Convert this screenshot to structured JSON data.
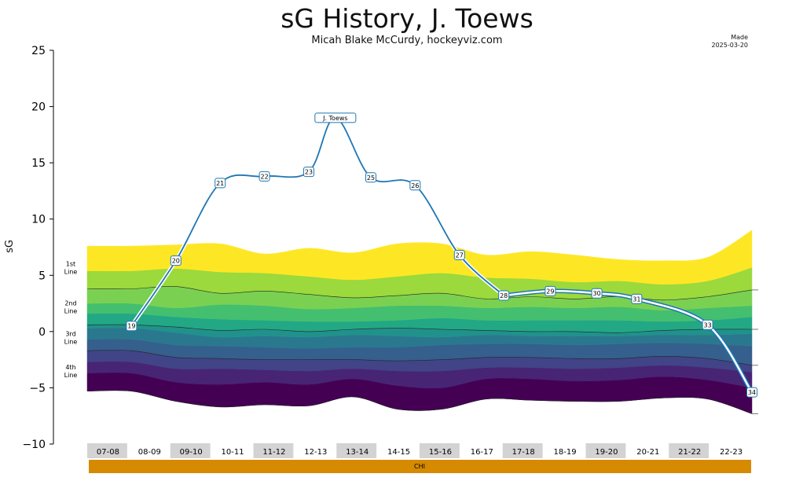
{
  "header": {
    "title": "sG History, J. Toews",
    "subtitle": "Micah Blake McCurdy, hockeyviz.com",
    "made_line1": "Made",
    "made_line2": "2025-03-20"
  },
  "chart_data": {
    "type": "line",
    "title": "sG History, J. Toews",
    "ylabel": "sG",
    "ylim": [
      -10,
      25
    ],
    "yticks": [
      -10,
      -5,
      0,
      5,
      10,
      15,
      20,
      25
    ],
    "seasons": [
      "07-08",
      "08-09",
      "09-10",
      "10-11",
      "11-12",
      "12-13",
      "13-14",
      "14-15",
      "15-16",
      "16-17",
      "17-18",
      "18-19",
      "19-20",
      "20-21",
      "21-22",
      "22-23"
    ],
    "team": "CHI",
    "line_labels": [
      "1st Line",
      "2nd Line",
      "3rd Line",
      "4th Line"
    ],
    "series": [
      {
        "label": "J. Toews",
        "points": [
          {
            "age": "19",
            "x": 1,
            "y": 0.5
          },
          {
            "age": "20",
            "x": 2,
            "y": 6.3
          },
          {
            "age": "21",
            "x": 3,
            "y": 13.2
          },
          {
            "age": "22",
            "x": 4,
            "y": 13.8
          },
          {
            "age": "23",
            "x": 5,
            "y": 14.2
          },
          {
            "age": "J. Toews",
            "x": 5.6,
            "y": 19.0
          },
          {
            "age": "25",
            "x": 6.4,
            "y": 13.7
          },
          {
            "age": "26",
            "x": 7.4,
            "y": 13.0
          },
          {
            "age": "27",
            "x": 8.4,
            "y": 6.8
          },
          {
            "age": "28",
            "x": 9.4,
            "y": 3.2
          },
          {
            "age": "29",
            "x": 10.45,
            "y": 3.6
          },
          {
            "age": "30",
            "x": 11.5,
            "y": 3.4
          },
          {
            "age": "31",
            "x": 12.4,
            "y": 2.9
          },
          {
            "age": "33",
            "x": 14.0,
            "y": 0.6
          },
          {
            "age": "34",
            "x": 15.0,
            "y": -5.4
          }
        ]
      }
    ],
    "distribution_bands": [
      [
        -5.3,
        -5.3,
        -6.2,
        -6.7,
        -6.5,
        -6.6,
        -5.8,
        -6.9,
        -6.9,
        -6.0,
        -6.1,
        -6.2,
        -6.2,
        -5.9,
        -6.0,
        -7.3
      ],
      [
        -3.7,
        -3.7,
        -4.5,
        -4.7,
        -4.5,
        -4.7,
        -4.2,
        -4.8,
        -5.0,
        -4.2,
        -4.2,
        -4.4,
        -4.3,
        -4.0,
        -4.3,
        -5.0
      ],
      [
        -2.7,
        -2.7,
        -3.3,
        -3.3,
        -3.4,
        -3.5,
        -3.3,
        -3.5,
        -3.5,
        -3.2,
        -3.2,
        -3.3,
        -3.2,
        -3.0,
        -3.2,
        -3.6
      ],
      [
        -1.7,
        -1.7,
        -2.3,
        -2.4,
        -2.5,
        -2.5,
        -2.5,
        -2.6,
        -2.5,
        -2.3,
        -2.3,
        -2.4,
        -2.4,
        -2.2,
        -2.4,
        -3.0
      ],
      [
        -0.7,
        -0.7,
        -1.2,
        -1.3,
        -1.4,
        -1.5,
        -1.4,
        -1.4,
        -1.2,
        -1.1,
        -1.1,
        -1.2,
        -1.1,
        -1.0,
        -1.1,
        -1.3
      ],
      [
        0.3,
        0.3,
        -0.1,
        -0.5,
        -0.4,
        -0.5,
        -0.3,
        -0.4,
        -0.5,
        -0.3,
        -0.4,
        -0.4,
        -0.4,
        -0.3,
        -0.3,
        -0.2
      ],
      [
        0.6,
        0.6,
        0.4,
        0.1,
        0.2,
        0.0,
        0.2,
        0.3,
        0.2,
        0.1,
        0.0,
        0.0,
        -0.1,
        0.1,
        0.2,
        0.2
      ],
      [
        1.6,
        1.6,
        1.3,
        1.1,
        1.0,
        0.9,
        0.9,
        1.0,
        1.2,
        1.0,
        1.0,
        1.0,
        1.0,
        0.9,
        1.0,
        1.3
      ],
      [
        2.5,
        2.5,
        2.1,
        2.4,
        2.3,
        2.0,
        2.1,
        2.3,
        2.3,
        2.1,
        2.2,
        2.1,
        2.2,
        1.9,
        2.1,
        2.3
      ],
      [
        3.8,
        3.8,
        4.0,
        3.4,
        3.6,
        3.3,
        3.0,
        3.2,
        3.4,
        2.9,
        3.1,
        2.9,
        3.1,
        2.8,
        3.1,
        3.7
      ],
      [
        5.4,
        5.4,
        5.6,
        5.3,
        5.2,
        4.9,
        4.6,
        4.9,
        5.2,
        4.8,
        4.7,
        4.4,
        4.5,
        4.2,
        4.5,
        5.7
      ],
      [
        7.6,
        7.6,
        7.7,
        7.8,
        6.9,
        7.4,
        7.0,
        7.8,
        7.8,
        6.8,
        7.1,
        6.8,
        6.4,
        6.3,
        6.6,
        9.0
      ]
    ]
  }
}
